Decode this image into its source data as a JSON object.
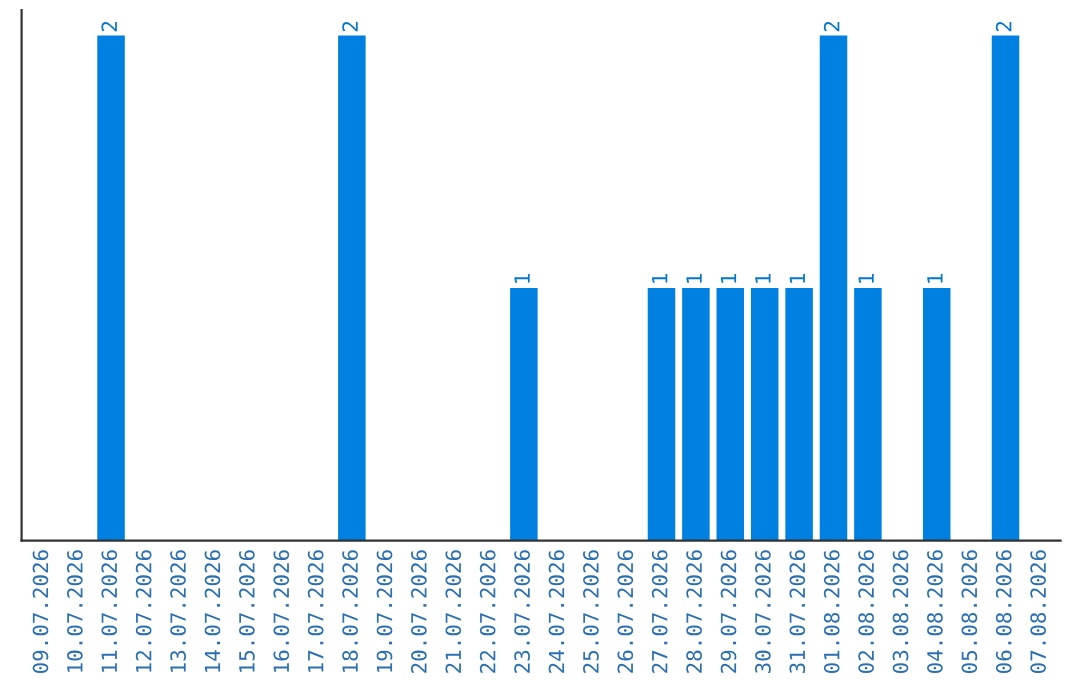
{
  "chart_data": {
    "type": "bar",
    "categories": [
      "09.07.2026",
      "10.07.2026",
      "11.07.2026",
      "12.07.2026",
      "13.07.2026",
      "14.07.2026",
      "15.07.2026",
      "16.07.2026",
      "17.07.2026",
      "18.07.2026",
      "19.07.2026",
      "20.07.2026",
      "21.07.2026",
      "22.07.2026",
      "23.07.2026",
      "24.07.2026",
      "25.07.2026",
      "26.07.2026",
      "27.07.2026",
      "28.07.2026",
      "29.07.2026",
      "30.07.2026",
      "31.07.2026",
      "01.08.2026",
      "02.08.2026",
      "03.08.2026",
      "04.08.2026",
      "05.08.2026",
      "06.08.2026",
      "07.08.2026"
    ],
    "values": [
      0,
      0,
      2,
      0,
      0,
      0,
      0,
      0,
      0,
      2,
      0,
      0,
      0,
      0,
      1,
      0,
      0,
      0,
      1,
      1,
      1,
      1,
      1,
      2,
      1,
      0,
      1,
      0,
      2,
      0
    ],
    "value_labels": [
      null,
      null,
      "2",
      null,
      null,
      null,
      null,
      null,
      null,
      "2",
      null,
      null,
      null,
      null,
      "1",
      null,
      null,
      null,
      "1",
      "1",
      "1",
      "1",
      "1",
      "2",
      "1",
      null,
      "1",
      null,
      "2",
      null
    ],
    "color": "#0080e0",
    "tick_labels": "x",
    "grid": false,
    "legend": false
  }
}
